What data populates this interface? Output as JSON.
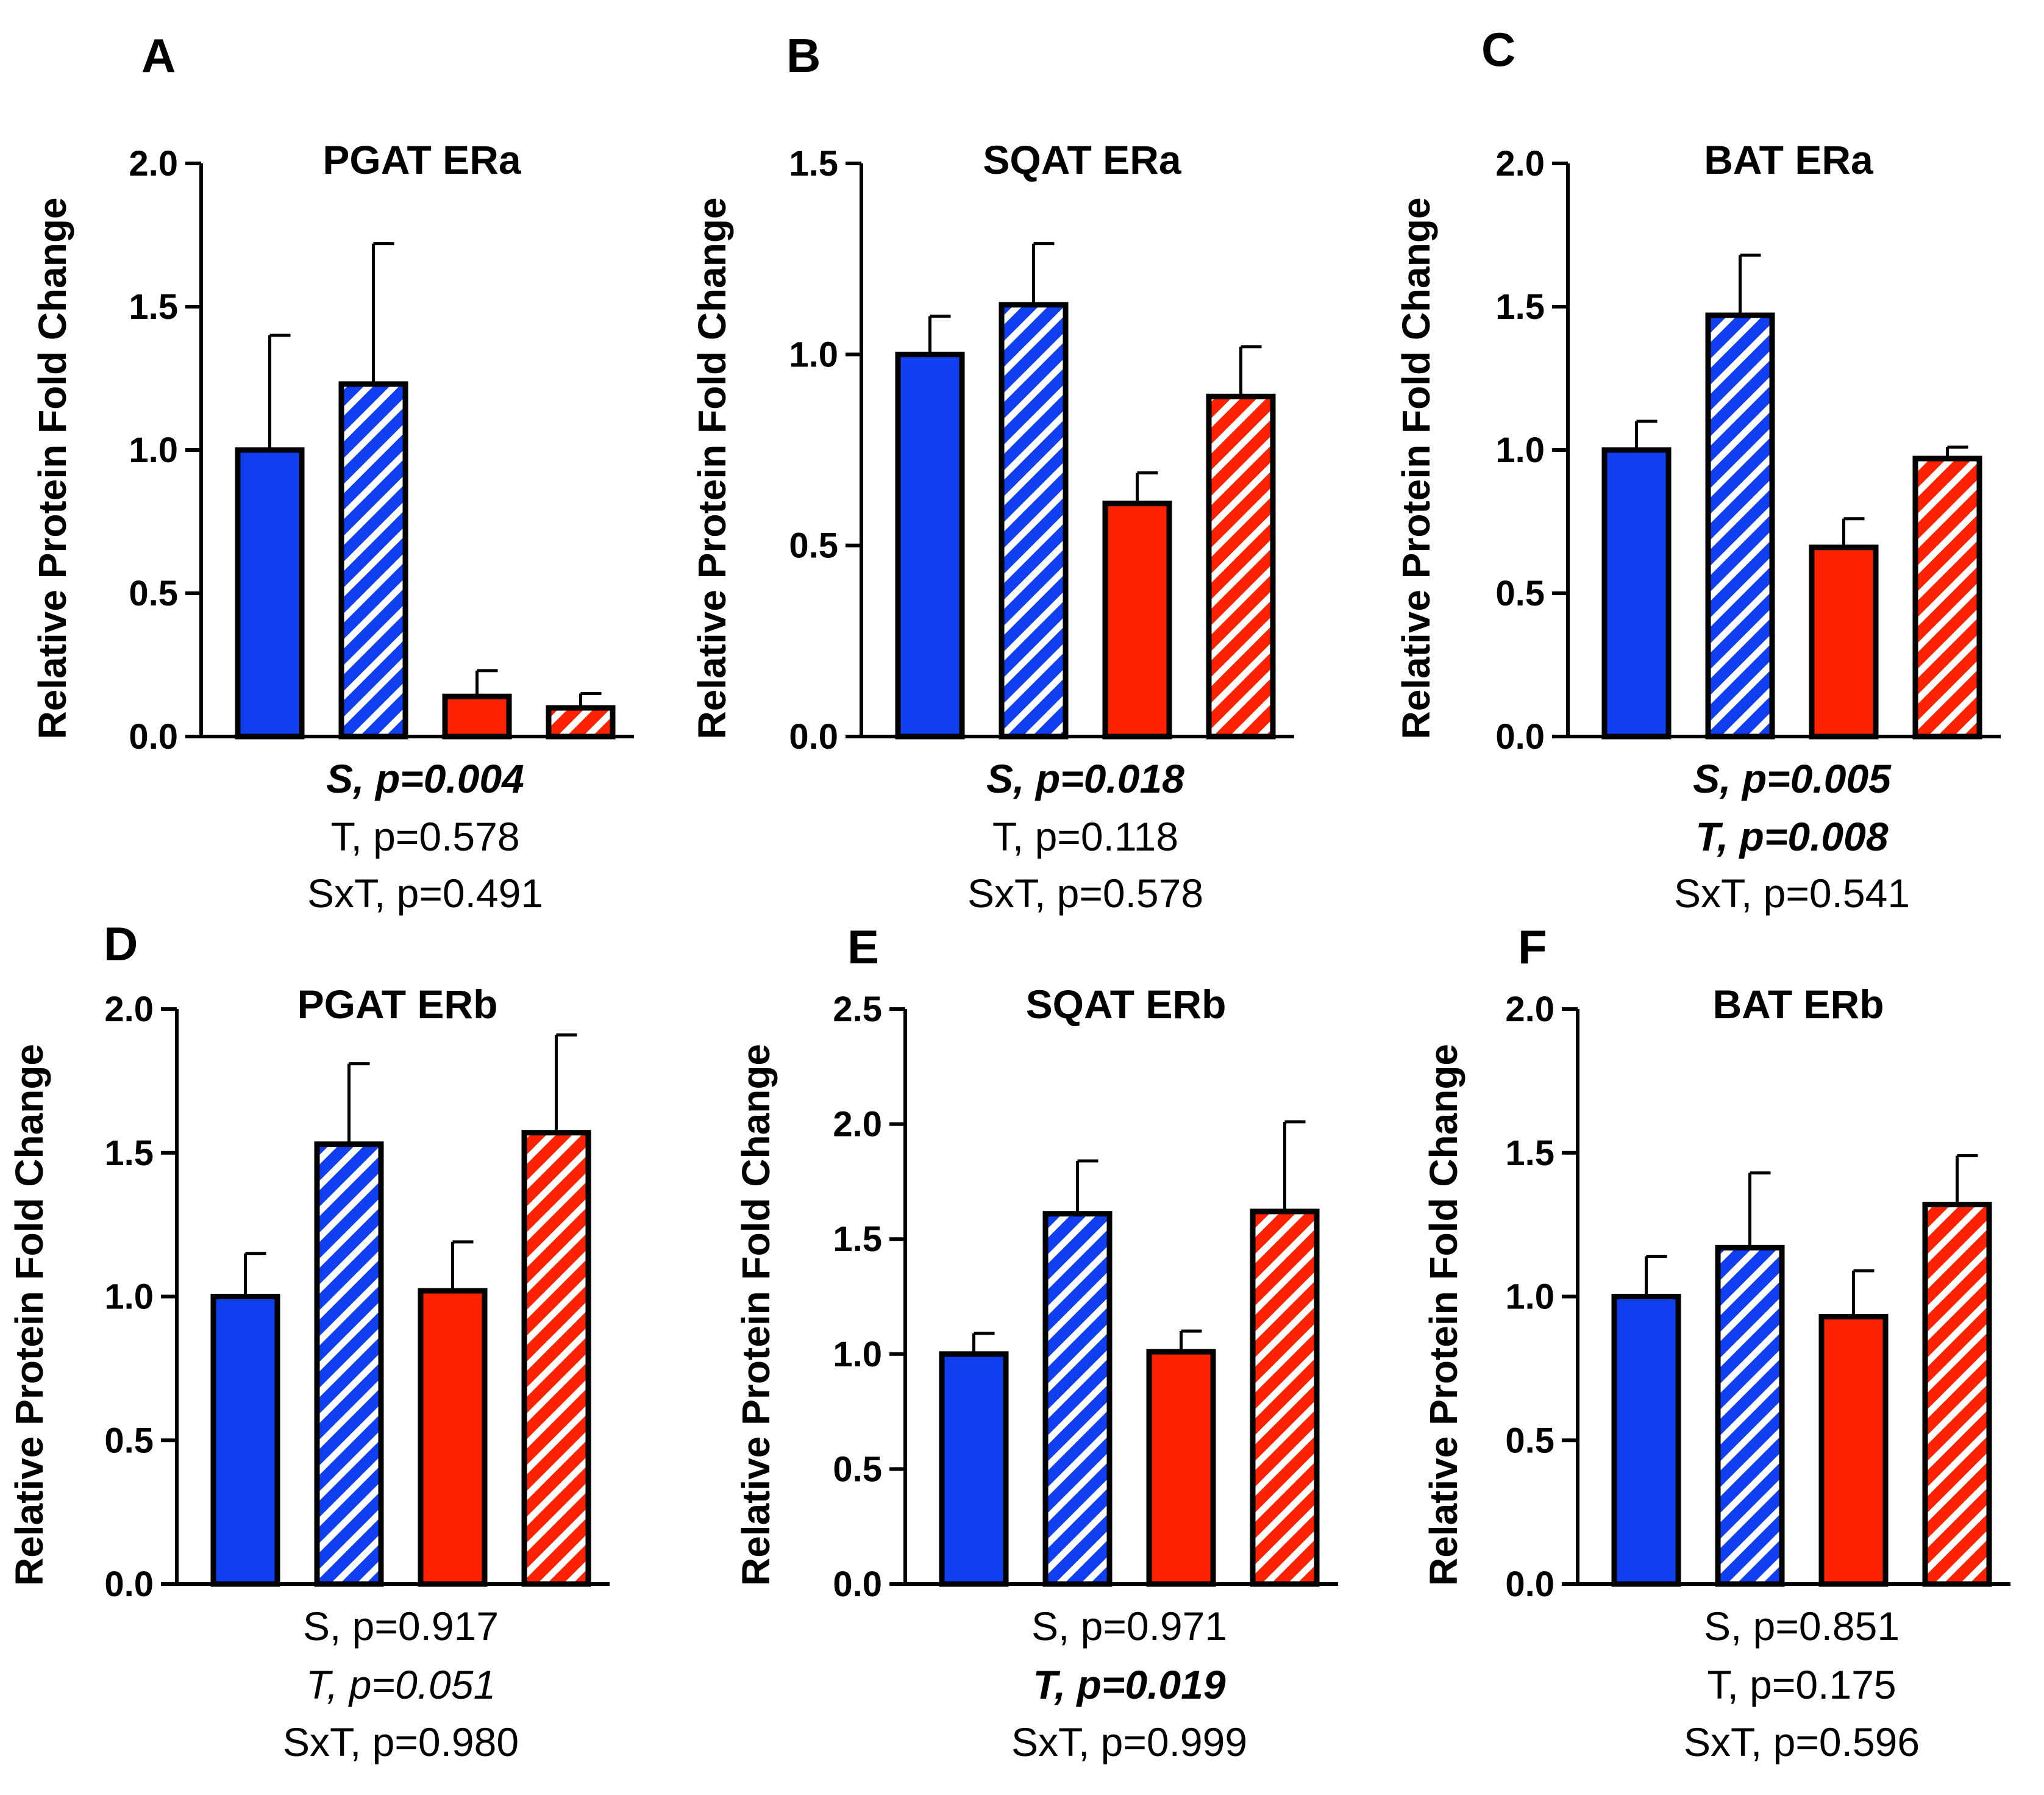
{
  "colors": {
    "blue": "#0f3ff0",
    "red": "#ff2200",
    "stripe": "#ffffff",
    "axis": "#000000"
  },
  "chart_data": [
    {
      "type": "bar",
      "panel": "A",
      "title": "PGAT ERa",
      "ylabel": "Relative Protein Fold Change",
      "ylim": [
        0,
        2.0
      ],
      "yticks": [
        "0.0",
        "0.5",
        "1.0",
        "1.5",
        "2.0"
      ],
      "categories": [
        "Blue solid",
        "Blue striped",
        "Red solid",
        "Red striped"
      ],
      "values": [
        1.0,
        1.23,
        0.14,
        0.1
      ],
      "errors": [
        0.4,
        0.49,
        0.09,
        0.05
      ],
      "stats": [
        {
          "text": "S, p=0.004",
          "bold": true,
          "italic": true
        },
        {
          "text": "T, p=0.578",
          "bold": false,
          "italic": false
        },
        {
          "text": "SxT, p=0.491",
          "bold": false,
          "italic": false
        }
      ]
    },
    {
      "type": "bar",
      "panel": "B",
      "title": "SQAT ERa",
      "ylabel": "Relative Protein Fold Change",
      "ylim": [
        0,
        1.5
      ],
      "yticks": [
        "0.0",
        "0.5",
        "1.0",
        "1.5"
      ],
      "categories": [
        "Blue solid",
        "Blue striped",
        "Red solid",
        "Red striped"
      ],
      "values": [
        1.0,
        1.13,
        0.61,
        0.89
      ],
      "errors": [
        0.1,
        0.16,
        0.08,
        0.13
      ],
      "stats": [
        {
          "text": "S, p=0.018",
          "bold": true,
          "italic": true
        },
        {
          "text": "T, p=0.118",
          "bold": false,
          "italic": false
        },
        {
          "text": "SxT, p=0.578",
          "bold": false,
          "italic": false
        }
      ]
    },
    {
      "type": "bar",
      "panel": "C",
      "title": "BAT ERa",
      "ylabel": "Relative Protein Fold Change",
      "ylim": [
        0,
        2.0
      ],
      "yticks": [
        "0.0",
        "0.5",
        "1.0",
        "1.5",
        "2.0"
      ],
      "categories": [
        "Blue solid",
        "Blue striped",
        "Red solid",
        "Red striped"
      ],
      "values": [
        1.0,
        1.47,
        0.66,
        0.97
      ],
      "errors": [
        0.1,
        0.21,
        0.1,
        0.04
      ],
      "stats": [
        {
          "text": "S, p=0.005",
          "bold": true,
          "italic": true
        },
        {
          "text": "T, p=0.008",
          "bold": true,
          "italic": true
        },
        {
          "text": "SxT, p=0.541",
          "bold": false,
          "italic": false
        }
      ]
    },
    {
      "type": "bar",
      "panel": "D",
      "title": "PGAT ERb",
      "ylabel": "Relative Protein Fold Change",
      "ylim": [
        0,
        2.0
      ],
      "yticks": [
        "0.0",
        "0.5",
        "1.0",
        "1.5",
        "2.0"
      ],
      "categories": [
        "Blue solid",
        "Blue striped",
        "Red solid",
        "Red striped"
      ],
      "values": [
        1.0,
        1.53,
        1.02,
        1.57
      ],
      "errors": [
        0.15,
        0.28,
        0.17,
        0.34
      ],
      "stats": [
        {
          "text": "S, p=0.917",
          "bold": false,
          "italic": false
        },
        {
          "text": "T, p=0.051",
          "bold": false,
          "italic": true
        },
        {
          "text": "SxT, p=0.980",
          "bold": false,
          "italic": false
        }
      ]
    },
    {
      "type": "bar",
      "panel": "E",
      "title": "SQAT ERb",
      "ylabel": "Relative Protein Fold Change",
      "ylim": [
        0,
        2.5
      ],
      "yticks": [
        "0.0",
        "0.5",
        "1.0",
        "1.5",
        "2.0",
        "2.5"
      ],
      "categories": [
        "Blue solid",
        "Blue striped",
        "Red solid",
        "Red striped"
      ],
      "values": [
        1.0,
        1.61,
        1.01,
        1.62
      ],
      "errors": [
        0.09,
        0.23,
        0.09,
        0.39
      ],
      "stats": [
        {
          "text": "S, p=0.971",
          "bold": false,
          "italic": false
        },
        {
          "text": "T, p=0.019",
          "bold": true,
          "italic": true
        },
        {
          "text": "SxT, p=0.999",
          "bold": false,
          "italic": false
        }
      ]
    },
    {
      "type": "bar",
      "panel": "F",
      "title": "BAT ERb",
      "ylabel": "Relative Protein Fold Change",
      "ylim": [
        0,
        2.0
      ],
      "yticks": [
        "0.0",
        "0.5",
        "1.0",
        "1.5",
        "2.0"
      ],
      "categories": [
        "Blue solid",
        "Blue striped",
        "Red solid",
        "Red striped"
      ],
      "values": [
        1.0,
        1.17,
        0.93,
        1.32
      ],
      "errors": [
        0.14,
        0.26,
        0.16,
        0.17
      ],
      "stats": [
        {
          "text": "S, p=0.851",
          "bold": false,
          "italic": false
        },
        {
          "text": "T, p=0.175",
          "bold": false,
          "italic": false
        },
        {
          "text": "SxT, p=0.596",
          "bold": false,
          "italic": false
        }
      ]
    }
  ]
}
